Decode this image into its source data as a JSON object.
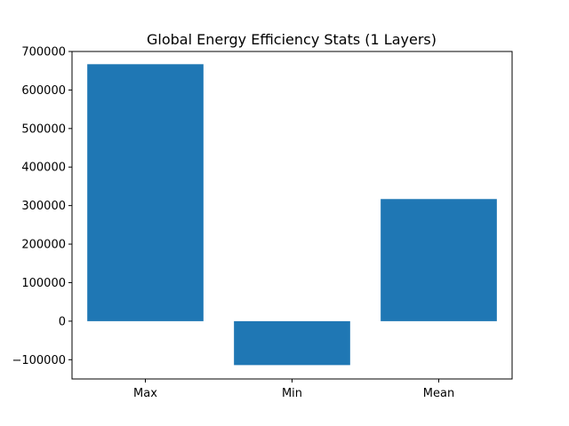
{
  "chart_data": {
    "type": "bar",
    "title": "Global Energy Efficiency Stats (1 Layers)",
    "xlabel": "",
    "ylabel": "",
    "categories": [
      "Max",
      "Min",
      "Mean"
    ],
    "values": [
      667000,
      -114000,
      317000
    ],
    "ylim": [
      -150000,
      700000
    ],
    "yticks": [
      -100000,
      0,
      100000,
      200000,
      300000,
      400000,
      500000,
      600000,
      700000
    ],
    "ytick_labels": [
      "−100000",
      "0",
      "100000",
      "200000",
      "300000",
      "400000",
      "500000",
      "600000",
      "700000"
    ],
    "bar_color": "#1f77b4",
    "grid": false,
    "legend": "none"
  }
}
